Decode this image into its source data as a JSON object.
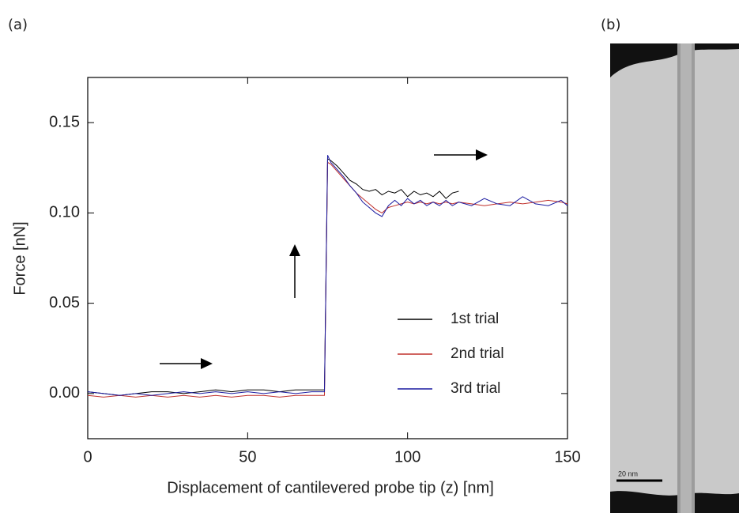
{
  "chart_data": {
    "type": "line",
    "panel_labels": [
      "(a)",
      "(b)"
    ],
    "x_label": "Displacement of cantilevered probe tip (z) [nm]",
    "y_label": "Force [nN]",
    "scale_bar_label": "20 nm",
    "x": [
      0,
      5,
      10,
      15,
      20,
      25,
      30,
      35,
      40,
      45,
      50,
      55,
      60,
      65,
      70,
      74,
      75,
      76,
      78,
      80,
      82,
      84,
      86,
      88,
      90,
      92,
      94,
      96,
      98,
      100,
      102,
      104,
      106,
      108,
      110,
      112,
      114,
      116,
      120,
      124,
      128,
      132,
      136,
      140,
      144,
      148,
      150
    ],
    "series": [
      {
        "name": "1st trial",
        "color": "#000000",
        "values": [
          0.001,
          0,
          -0.001,
          0,
          0.001,
          0.001,
          0,
          0.001,
          0.002,
          0.001,
          0.002,
          0.002,
          0.001,
          0.002,
          0.002,
          0.002,
          0.13,
          0.129,
          0.126,
          0.122,
          0.118,
          0.116,
          0.113,
          0.112,
          0.113,
          0.11,
          0.112,
          0.111,
          0.113,
          0.109,
          0.112,
          0.11,
          0.111,
          0.109,
          0.112,
          0.108,
          0.111,
          0.112,
          null,
          null,
          null,
          null,
          null,
          null,
          null,
          null,
          null
        ]
      },
      {
        "name": "2nd trial",
        "color": "#c0302c",
        "values": [
          -0.001,
          -0.002,
          -0.001,
          -0.002,
          -0.001,
          -0.002,
          -0.001,
          -0.002,
          -0.001,
          -0.002,
          -0.001,
          -0.001,
          -0.002,
          -0.001,
          -0.001,
          -0.001,
          0.128,
          0.127,
          0.123,
          0.119,
          0.115,
          0.111,
          0.108,
          0.105,
          0.102,
          0.1,
          0.103,
          0.104,
          0.105,
          0.106,
          0.105,
          0.106,
          0.105,
          0.106,
          0.105,
          0.106,
          0.105,
          0.106,
          0.105,
          0.104,
          0.105,
          0.106,
          0.105,
          0.106,
          0.107,
          0.106,
          0.105
        ]
      },
      {
        "name": "3rd trial",
        "color": "#1a1aa0",
        "values": [
          0.001,
          0,
          -0.001,
          0,
          -0.001,
          0,
          0.001,
          0,
          0.001,
          0,
          0.001,
          0,
          0.001,
          0,
          0.001,
          0.001,
          0.132,
          0.128,
          0.124,
          0.12,
          0.115,
          0.111,
          0.106,
          0.103,
          0.1,
          0.098,
          0.104,
          0.107,
          0.104,
          0.108,
          0.105,
          0.107,
          0.104,
          0.106,
          0.104,
          0.107,
          0.104,
          0.106,
          0.104,
          0.108,
          0.105,
          0.104,
          0.109,
          0.105,
          0.104,
          0.107,
          0.104
        ]
      }
    ],
    "xlim": [
      0,
      150
    ],
    "xticks": [
      0,
      50,
      100,
      150
    ],
    "ylim": [
      -0.025,
      0.175
    ],
    "yticks": [
      {
        "value": 0,
        "label": "0.00"
      },
      0.05,
      {
        "value": 0.1,
        "label": "0.10"
      },
      0.15
    ]
  }
}
